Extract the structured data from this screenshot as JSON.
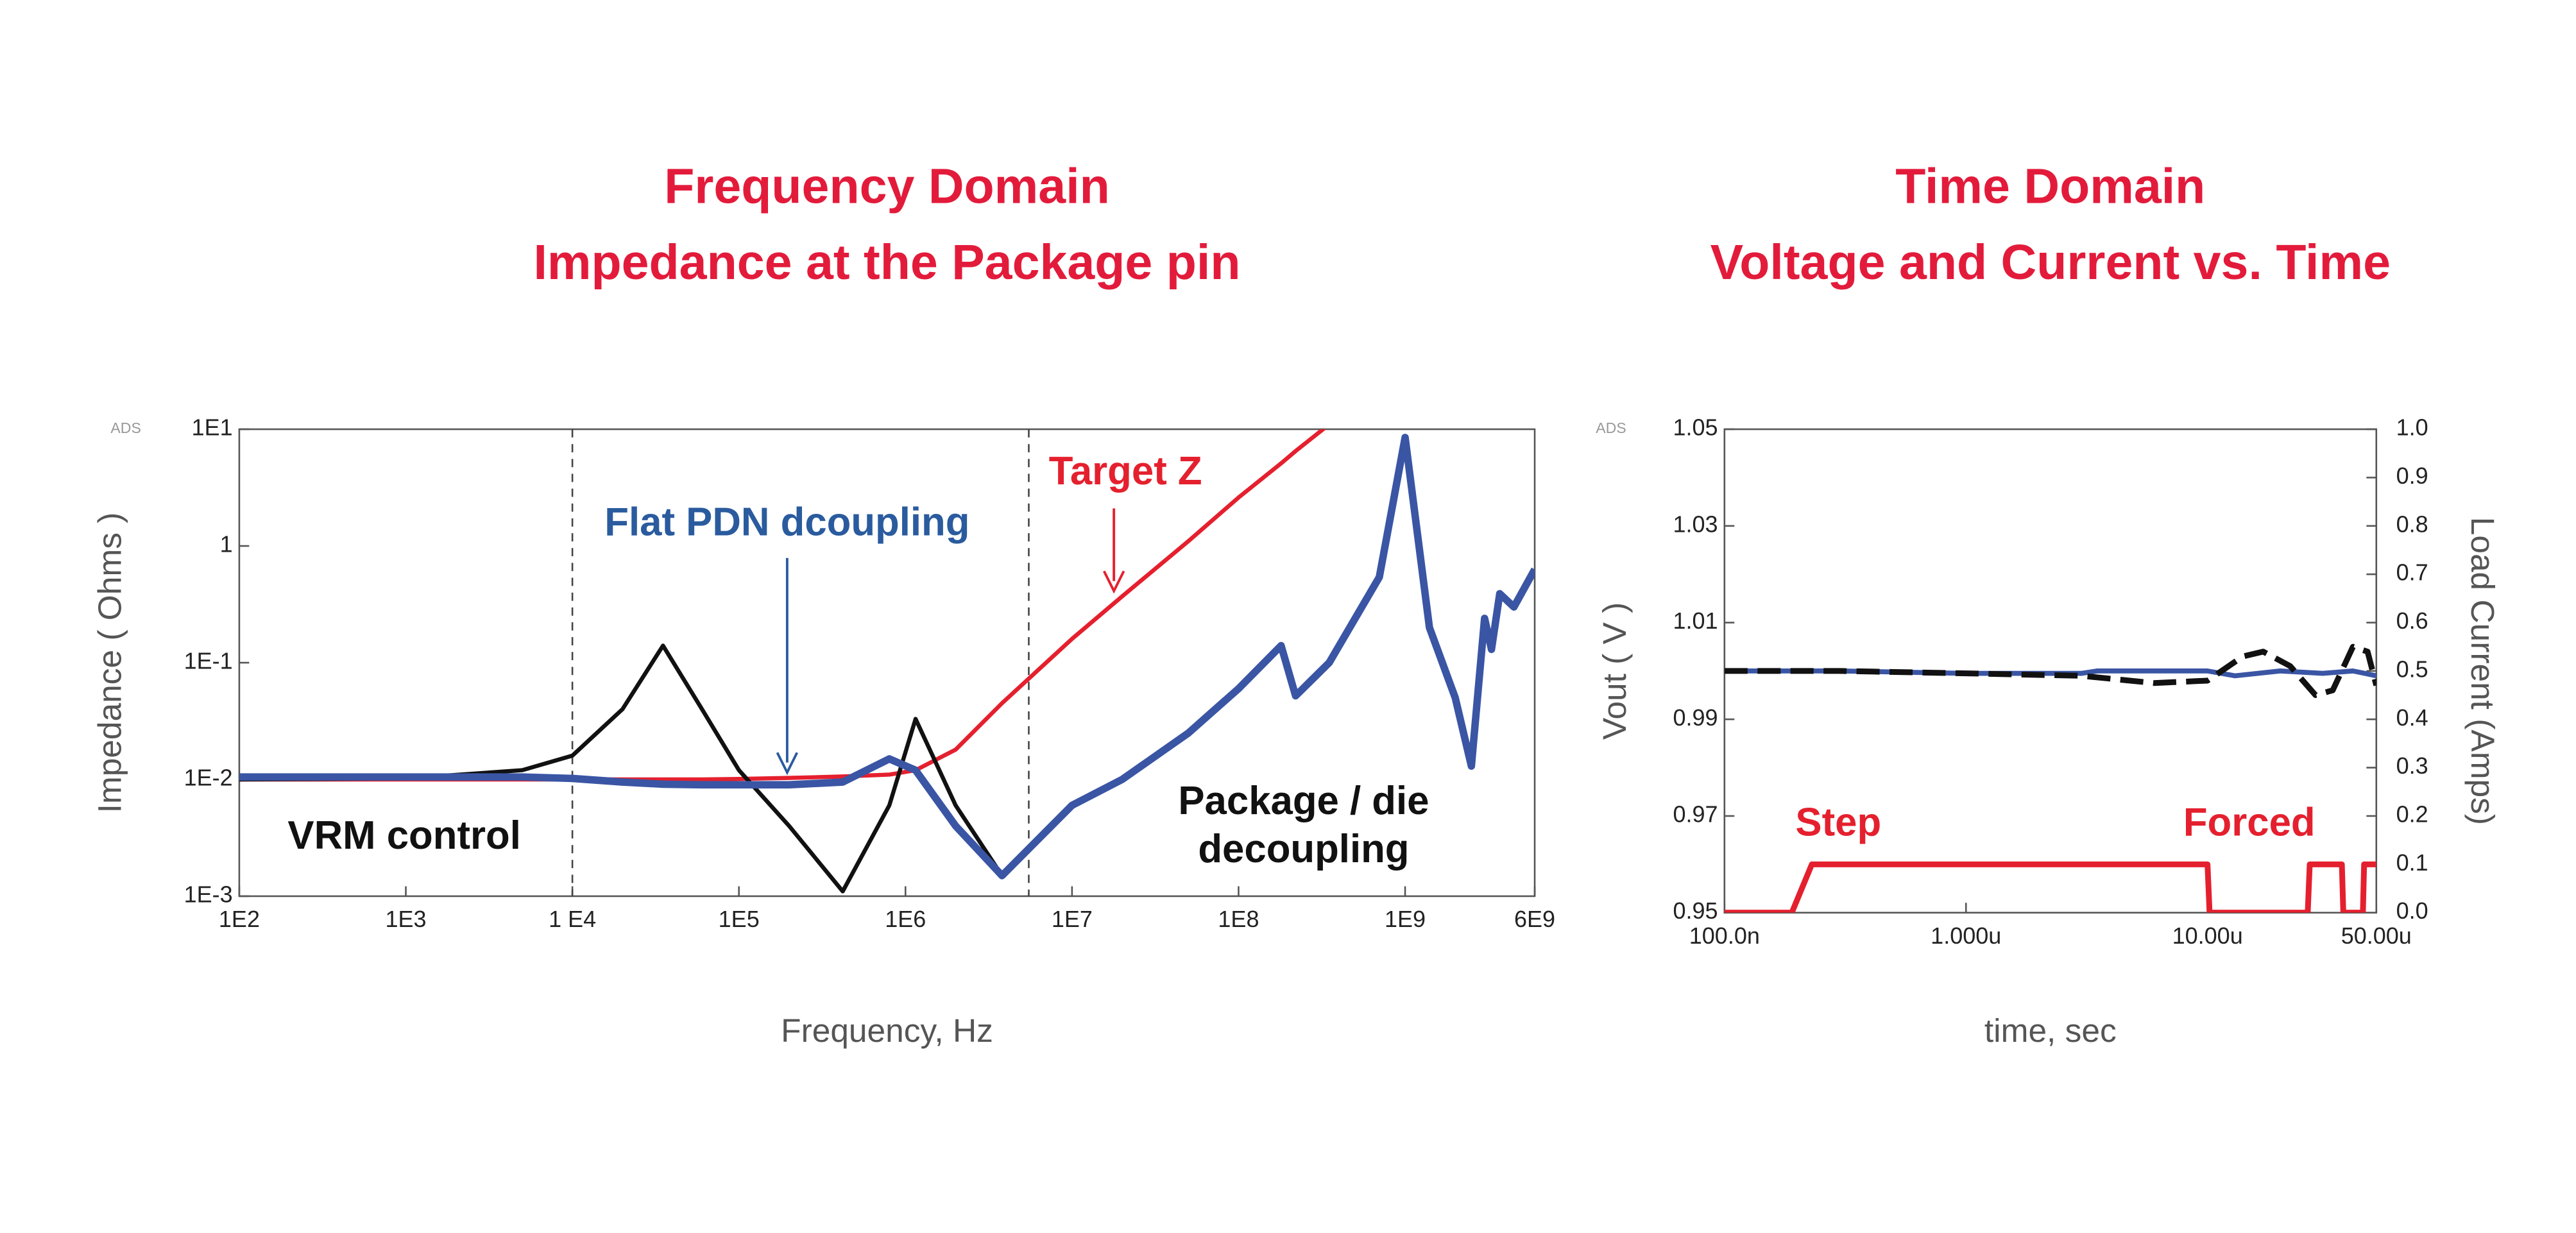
{
  "chart_data": [
    {
      "type": "line",
      "title": [
        "Frequency Domain",
        "Impedance at the Package pin"
      ],
      "watermark": "ADS",
      "xlabel": "Frequency, Hz",
      "ylabel": "Impedance ( Ohms )",
      "xlog": true,
      "ylog": true,
      "xlim": [
        100,
        6000000000
      ],
      "ylim": [
        0.001,
        10
      ],
      "xticks": [
        {
          "value": 100,
          "label": "1E2"
        },
        {
          "value": 1000,
          "label": "1E3"
        },
        {
          "value": 10000,
          "label": "1 E4"
        },
        {
          "value": 100000,
          "label": "1E5"
        },
        {
          "value": 1000000,
          "label": "1E6"
        },
        {
          "value": 10000000,
          "label": "1E7"
        },
        {
          "value": 100000000,
          "label": "1E8"
        },
        {
          "value": 1000000000,
          "label": "1E9"
        },
        {
          "value": 6000000000,
          "label": "6E9"
        }
      ],
      "yticks": [
        {
          "value": 0.001,
          "label": "1E-3"
        },
        {
          "value": 0.01,
          "label": "1E-2"
        },
        {
          "value": 0.1,
          "label": "1E-1"
        },
        1,
        {
          "value": 10,
          "label": "1E1"
        }
      ],
      "vlines": [
        10000,
        5500000
      ],
      "x": [
        100,
        1000,
        5000,
        10000,
        20000,
        35000,
        60000,
        100000,
        200000,
        420000,
        800000,
        1150000,
        2000000,
        3800000,
        10000000,
        20000000,
        50000000,
        100000000,
        180000000,
        220000000,
        350000000,
        700000000,
        1000000000,
        1400000000,
        2000000000,
        2500000000,
        3000000000,
        3300000000,
        3700000000,
        4500000000,
        6000000000
      ],
      "series": [
        {
          "color": "#e5202e",
          "values": [
            0.01,
            0.01,
            0.01,
            0.01,
            0.01,
            0.01,
            0.01,
            0.0101,
            0.0103,
            0.0106,
            0.011,
            0.012,
            0.018,
            0.045,
            0.16,
            0.37,
            1.1,
            2.6,
            5.1,
            6.5,
            11,
            null,
            null,
            null,
            null,
            null,
            null,
            null,
            null,
            null,
            null
          ]
        },
        {
          "color": "#111111",
          "values": [
            0.01,
            0.0102,
            0.012,
            0.016,
            0.04,
            0.14,
            0.04,
            0.012,
            0.004,
            0.0011,
            0.006,
            0.033,
            0.006,
            0.0015,
            null,
            null,
            null,
            null,
            null,
            null,
            null,
            null,
            null,
            null,
            null,
            null,
            null,
            null,
            null,
            null,
            null
          ]
        },
        {
          "color": "#3a55a4",
          "values": [
            0.0105,
            0.0105,
            0.0105,
            0.0102,
            0.0095,
            0.0091,
            0.009,
            0.009,
            0.009,
            0.0095,
            0.015,
            0.012,
            0.004,
            0.0015,
            0.006,
            0.01,
            0.025,
            0.06,
            0.14,
            0.052,
            0.1,
            0.54,
            8.5,
            0.2,
            0.05,
            0.013,
            0.24,
            0.13,
            0.39,
            0.3,
            0.63
          ]
        }
      ],
      "annotations": [
        {
          "text": "VRM control",
          "color": "#111111"
        },
        {
          "text": "Flat PDN dcoupling",
          "color": "#2a5b9e"
        },
        {
          "text": "Target Z",
          "color": "#e5202e"
        },
        {
          "text": "Package / die",
          "color": "#111111"
        },
        {
          "text": "decoupling",
          "color": "#111111"
        }
      ]
    },
    {
      "type": "line",
      "title": [
        "Time Domain",
        "Voltage and Current vs. Time"
      ],
      "watermark": "ADS",
      "xlabel": "time, sec",
      "ylabel": "Vout ( V )",
      "y2label": "Load Current (Amps)",
      "xlog": true,
      "ylog": false,
      "xlim": [
        1e-07,
        5e-05
      ],
      "ylim": [
        0.95,
        1.05
      ],
      "y2lim": [
        0,
        1
      ],
      "xticks": [
        {
          "value": 1e-07,
          "label": "100.0n"
        },
        {
          "value": 1e-06,
          "label": "1.000u"
        },
        {
          "value": 1e-05,
          "label": "10.00u"
        },
        {
          "value": 5e-05,
          "label": "50.00u"
        }
      ],
      "yticks": [
        0.95,
        0.97,
        0.99,
        1.01,
        1.03,
        1.05
      ],
      "y2ticks": [
        {
          "value": 0,
          "label": "0.0"
        },
        0.1,
        0.2,
        0.3,
        0.4,
        0.5,
        0.6,
        0.7,
        0.8,
        0.9,
        {
          "value": 1,
          "label": "1.0"
        }
      ],
      "series": [
        {
          "color": "#3a55a4",
          "x": [
            1e-07,
            3e-07,
            1e-06,
            3e-06,
            3.5e-06,
            1e-05,
            1.3e-05,
            2e-05,
            3e-05,
            4e-05,
            5e-05
          ],
          "values": [
            1.0,
            1.0,
            0.9995,
            0.9995,
            1.0,
            1.0,
            0.999,
            1.0,
            0.9995,
            1.0,
            0.999
          ]
        },
        {
          "color": "#111111",
          "dash": true,
          "x": [
            1e-07,
            3e-07,
            1e-06,
            3e-06,
            6e-06,
            1e-05,
            1.4e-05,
            1.7e-05,
            2.2e-05,
            2.8e-05,
            3.3e-05,
            4e-05,
            4.6e-05,
            5e-05
          ],
          "values": [
            1.0,
            1.0,
            0.9995,
            0.999,
            0.9975,
            0.998,
            1.003,
            1.004,
            1.001,
            0.995,
            0.996,
            1.005,
            1.004,
            0.997
          ]
        },
        {
          "color": "#e5202e",
          "axis": "y2",
          "x": [
            1e-07,
            1.9e-07,
            2.3e-07,
            1e-05,
            1.02e-05,
            2.6e-05,
            2.65e-05,
            3.6e-05,
            3.65e-05,
            4.4e-05,
            4.45e-05,
            5e-05
          ],
          "values": [
            0,
            0,
            0.1,
            0.1,
            0,
            0,
            0.1,
            0.1,
            0,
            0,
            0.1,
            0.1
          ]
        }
      ],
      "annotations": [
        {
          "text": "Step",
          "color": "#e5202e"
        },
        {
          "text": "Forced",
          "color": "#e5202e"
        }
      ]
    }
  ]
}
